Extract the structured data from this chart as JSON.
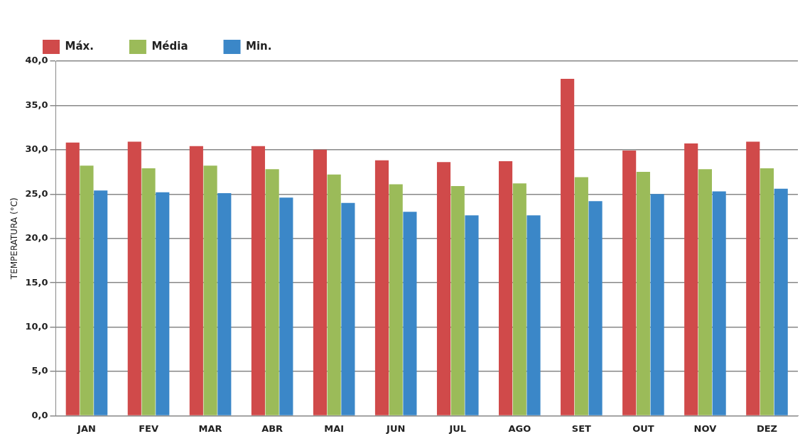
{
  "chart_data": {
    "type": "bar",
    "ylabel": "TEMPERATURA (°C)",
    "categories": [
      "JAN",
      "FEV",
      "MAR",
      "ABR",
      "MAI",
      "JUN",
      "JUL",
      "AGO",
      "SET",
      "OUT",
      "NOV",
      "DEZ"
    ],
    "series": [
      {
        "name": "Máx.",
        "color": "#d04a4a",
        "values": [
          30.8,
          30.9,
          30.4,
          30.4,
          30.0,
          28.8,
          28.6,
          28.7,
          38.0,
          29.9,
          30.7,
          30.9
        ]
      },
      {
        "name": "Média",
        "color": "#9bbb59",
        "values": [
          28.2,
          27.9,
          28.2,
          27.8,
          27.2,
          26.1,
          25.9,
          26.2,
          26.9,
          27.5,
          27.8,
          27.9
        ]
      },
      {
        "name": "Min.",
        "color": "#3b87c8",
        "values": [
          25.4,
          25.2,
          25.1,
          24.6,
          24.0,
          23.0,
          22.6,
          22.6,
          24.2,
          25.0,
          25.3,
          25.6
        ]
      }
    ],
    "ylim": [
      0,
      40
    ],
    "yticks": [
      {
        "value": 0,
        "label": "0,0"
      },
      {
        "value": 5,
        "label": "5,0"
      },
      {
        "value": 10,
        "label": "10,0"
      },
      {
        "value": 15,
        "label": "15,0"
      },
      {
        "value": 20,
        "label": "20,0"
      },
      {
        "value": 25,
        "label": "25,0"
      },
      {
        "value": 30,
        "label": "30,0"
      },
      {
        "value": 35,
        "label": "35,0"
      },
      {
        "value": 40,
        "label": "40,0"
      }
    ],
    "grid": "y",
    "legend": "top left"
  }
}
